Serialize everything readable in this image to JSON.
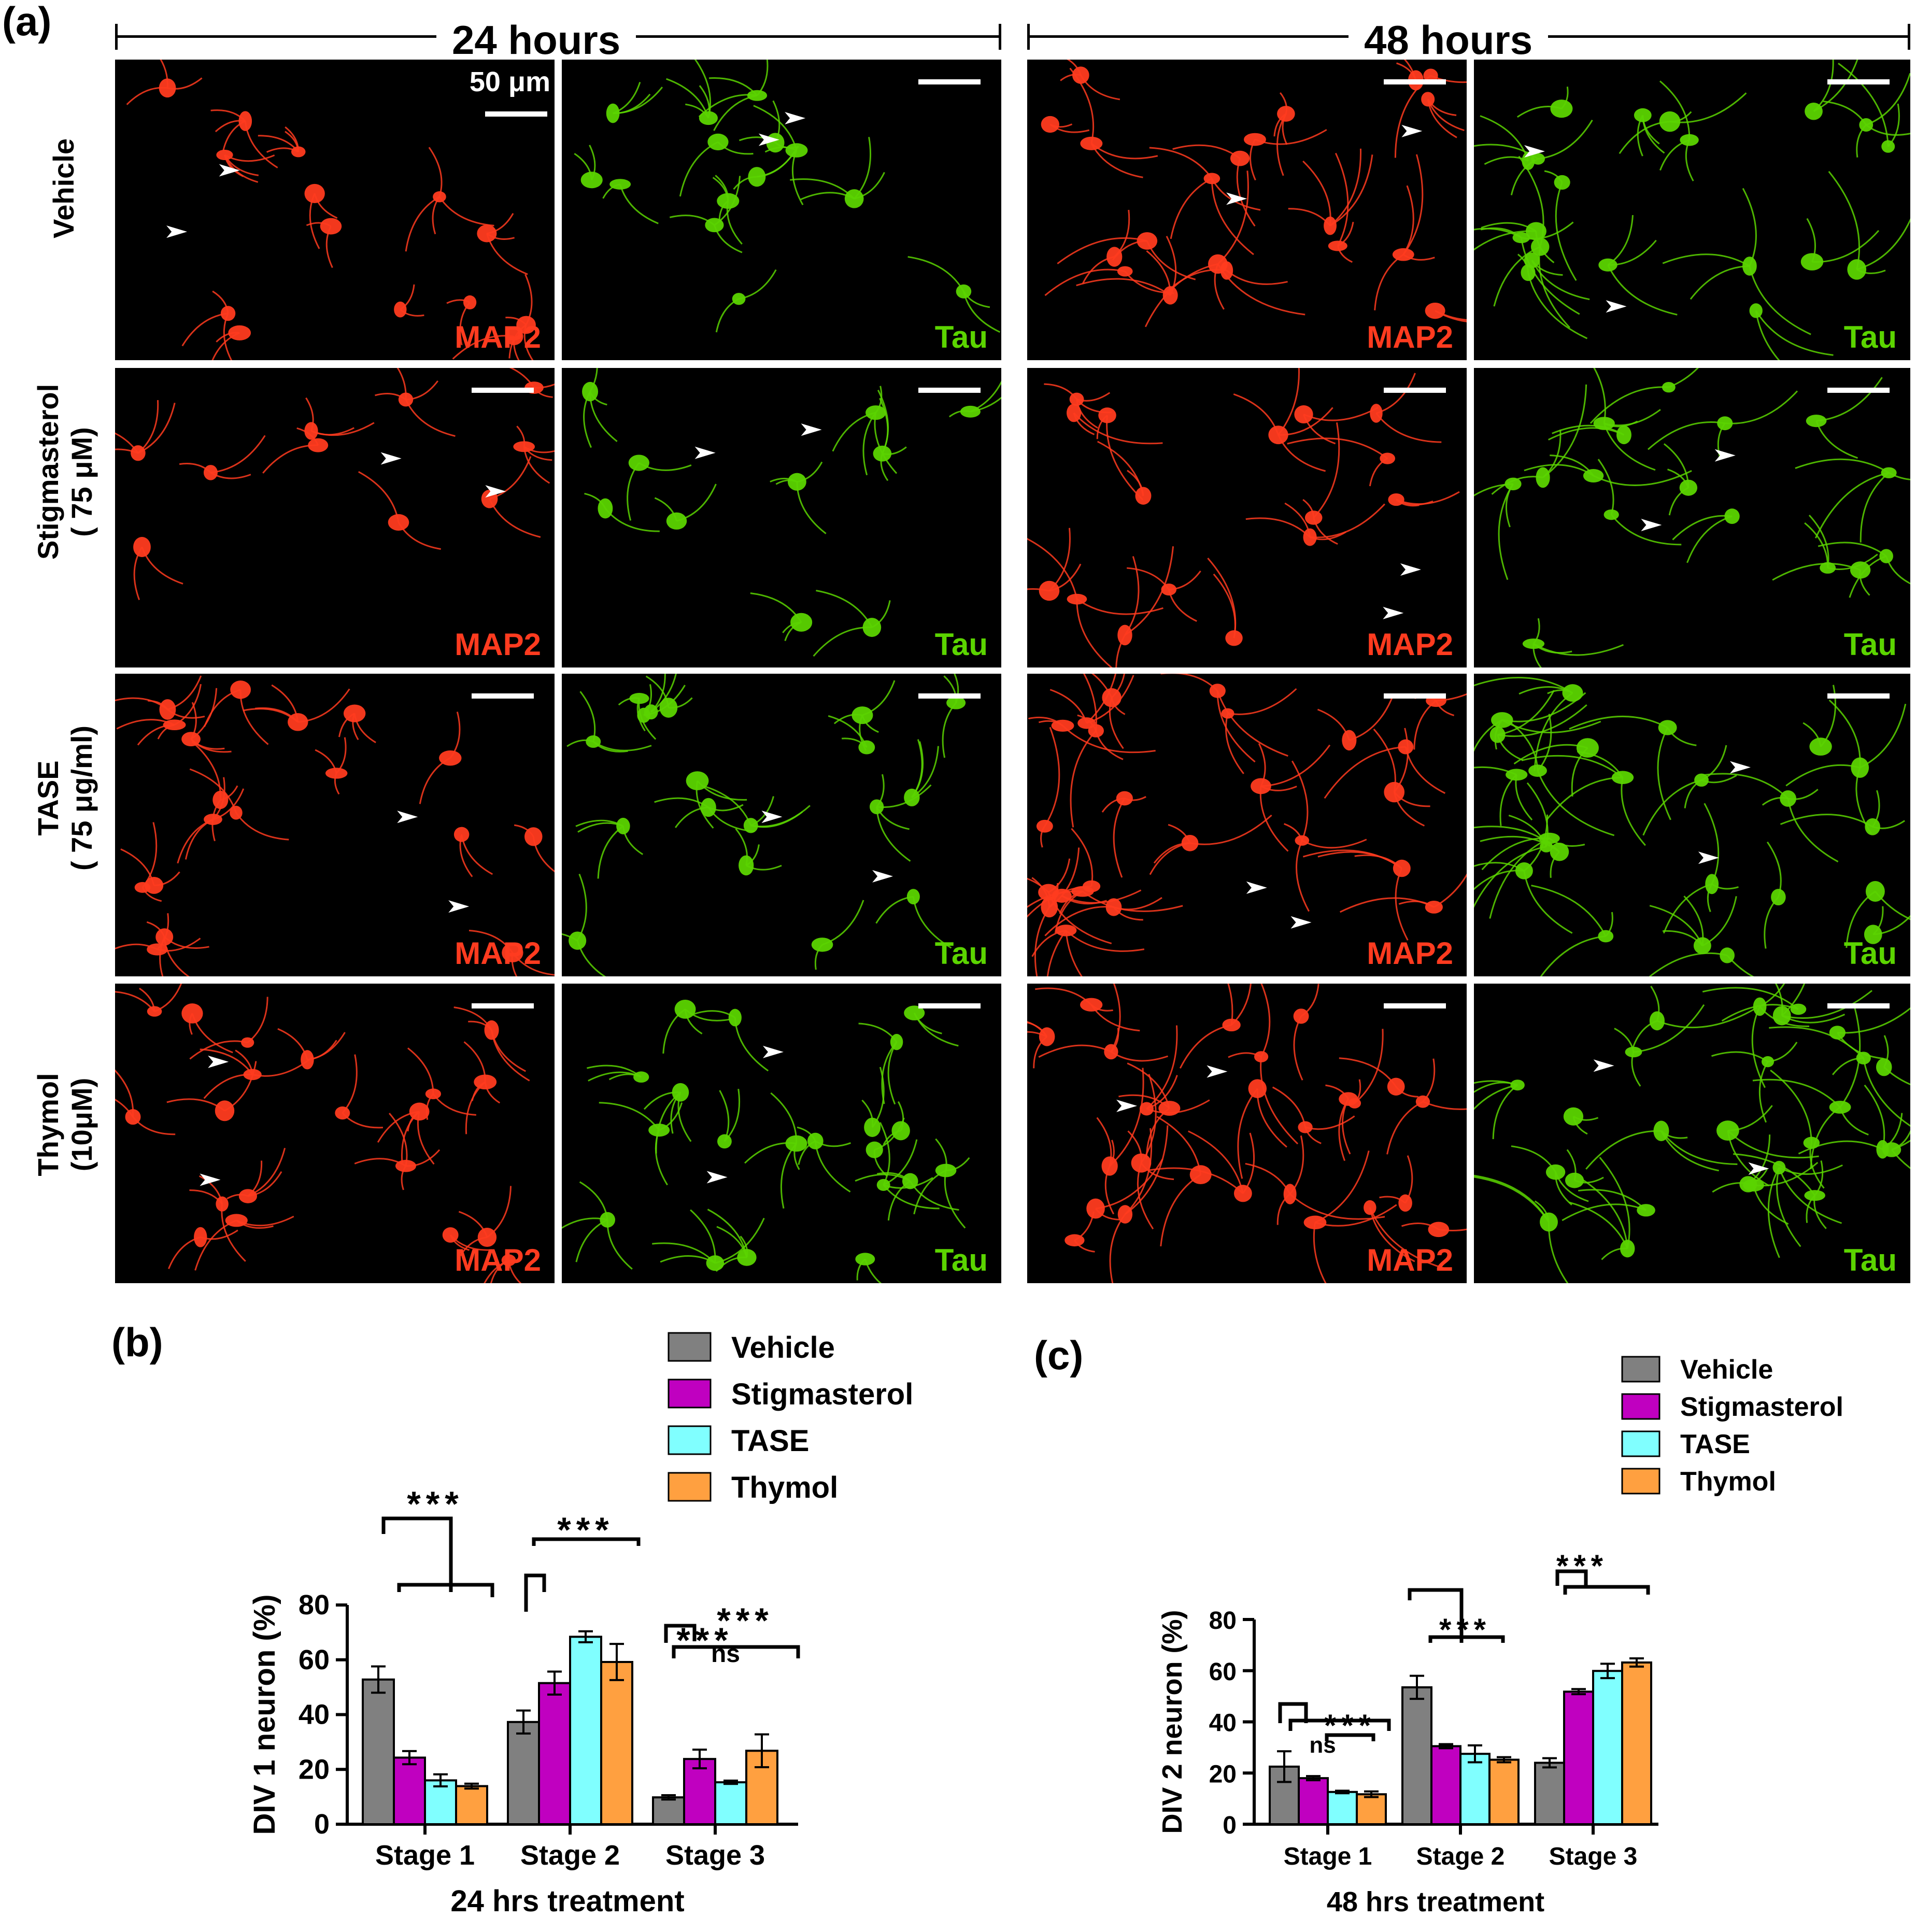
{
  "figure": {
    "panel_a_label": "(a)",
    "panel_b_label": "(b)",
    "panel_c_label": "(c)",
    "time_24": "24 hours",
    "time_48": "48 hours",
    "scale_label": "50 μm",
    "stain_map2": "MAP2",
    "stain_tau": "Tau",
    "map2_color": "#ff3b1f",
    "tau_color": "#5bd400",
    "rows": [
      {
        "line1": "Vehicle",
        "line2": ""
      },
      {
        "line1": "Stigmasterol",
        "line2": "( 75 μM)"
      },
      {
        "line1": "TASE",
        "line2": "( 75 μg/ml)"
      },
      {
        "line1": "Thymol",
        "line2": "(10μM)"
      }
    ]
  },
  "chart_data": [
    {
      "type": "bar",
      "categories": [
        "Stage 1",
        "Stage 2",
        "Stage 3"
      ],
      "series": [
        {
          "name": "Vehicle",
          "color": "#808080",
          "values": [
            52.8,
            37.3,
            9.8
          ],
          "errors": [
            4.8,
            4.2,
            0.8
          ]
        },
        {
          "name": "Stigmasterol",
          "color": "#c000c0",
          "values": [
            24.3,
            51.5,
            23.8
          ],
          "errors": [
            2.4,
            4.2,
            3.4
          ]
        },
        {
          "name": "TASE",
          "color": "#80ffff",
          "values": [
            16.0,
            68.4,
            15.3
          ],
          "errors": [
            2.2,
            2.0,
            0.6
          ]
        },
        {
          "name": "Thymol",
          "color": "#ffa040",
          "values": [
            13.9,
            59.2,
            26.8
          ],
          "errors": [
            0.9,
            6.6,
            6.0
          ]
        }
      ],
      "title": "",
      "xlabel": "24 hrs treatment",
      "ylabel": "DIV 1 neuron  (%)",
      "ylim": [
        0,
        80
      ],
      "yticks": [
        "0",
        "20",
        "40",
        "60",
        "80"
      ],
      "significance": [
        "***",
        "***",
        "***",
        "***",
        "ns"
      ],
      "legend": "top-right"
    },
    {
      "type": "bar",
      "categories": [
        "Stage 1",
        "Stage 2",
        "Stage 3"
      ],
      "series": [
        {
          "name": "Vehicle",
          "color": "#808080",
          "values": [
            22.5,
            53.5,
            24.0
          ],
          "errors": [
            6.0,
            4.5,
            1.8
          ]
        },
        {
          "name": "Stigmasterol",
          "color": "#c000c0",
          "values": [
            18.0,
            30.5,
            51.8
          ],
          "errors": [
            0.8,
            0.8,
            1.0
          ]
        },
        {
          "name": "TASE",
          "color": "#80ffff",
          "values": [
            12.6,
            27.5,
            59.9
          ],
          "errors": [
            0.5,
            3.3,
            2.8
          ]
        },
        {
          "name": "Thymol",
          "color": "#ffa040",
          "values": [
            11.7,
            25.2,
            63.2
          ],
          "errors": [
            1.1,
            1.0,
            1.6
          ]
        }
      ],
      "title": "",
      "xlabel": "48 hrs treatment",
      "ylabel": "DIV 2 neuron  (%)",
      "ylim": [
        0,
        80
      ],
      "yticks": [
        "0",
        "20",
        "40",
        "60",
        "80"
      ],
      "significance": [
        "ns",
        "***",
        "***",
        "***"
      ],
      "legend": "top-right"
    }
  ]
}
